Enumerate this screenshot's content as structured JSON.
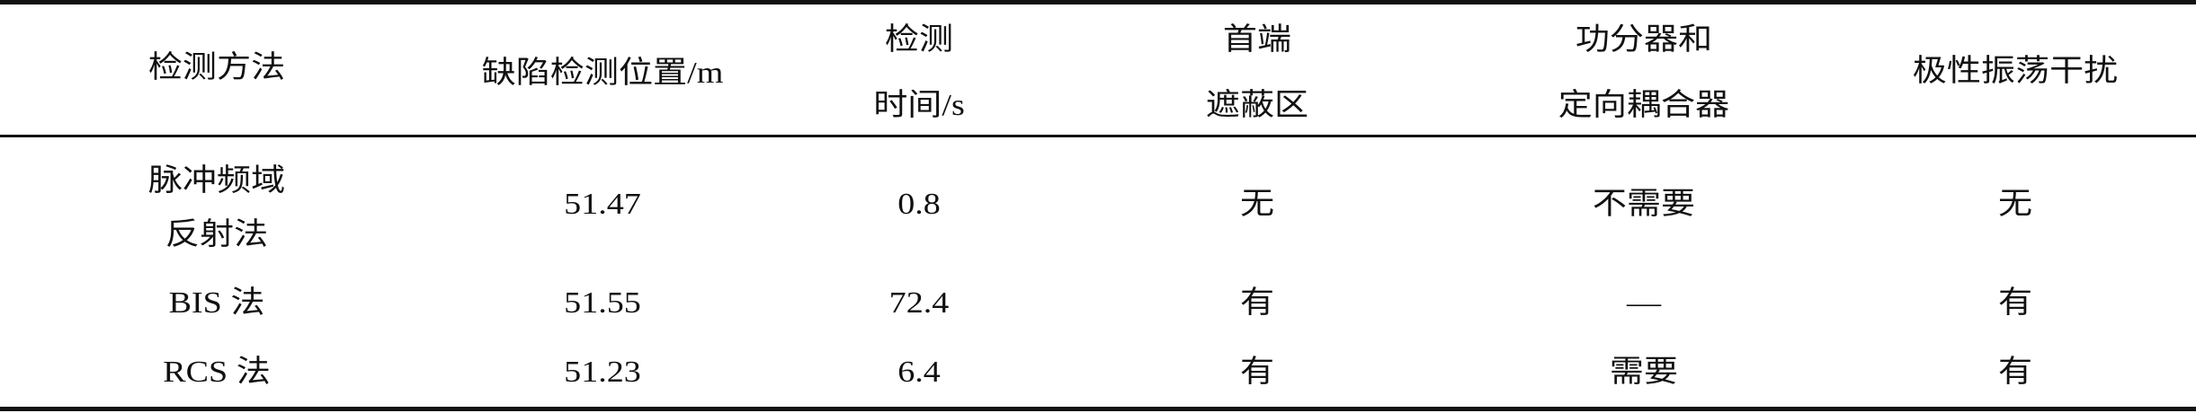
{
  "table": {
    "headers": [
      {
        "lines": [
          "检测方法"
        ]
      },
      {
        "lines": [
          "缺陷检测位置/m"
        ]
      },
      {
        "lines": [
          "检测",
          "时间/s"
        ]
      },
      {
        "lines": [
          "首端",
          "遮蔽区"
        ]
      },
      {
        "lines": [
          "功分器和",
          "定向耦合器"
        ]
      },
      {
        "lines": [
          "极性振荡干扰"
        ]
      }
    ],
    "rows": [
      {
        "method_lines": [
          "脉冲频域",
          "反射法"
        ],
        "position": "51.47",
        "time": "0.8",
        "blind_zone": "无",
        "splitter_coupler": "不需要",
        "polarity_oscillation": "无"
      },
      {
        "method_lines": [
          "BIS 法"
        ],
        "position": "51.55",
        "time": "72.4",
        "blind_zone": "有",
        "splitter_coupler": "—",
        "polarity_oscillation": "有"
      },
      {
        "method_lines": [
          "RCS 法"
        ],
        "position": "51.23",
        "time": "6.4",
        "blind_zone": "有",
        "splitter_coupler": "需要",
        "polarity_oscillation": "有"
      }
    ]
  }
}
